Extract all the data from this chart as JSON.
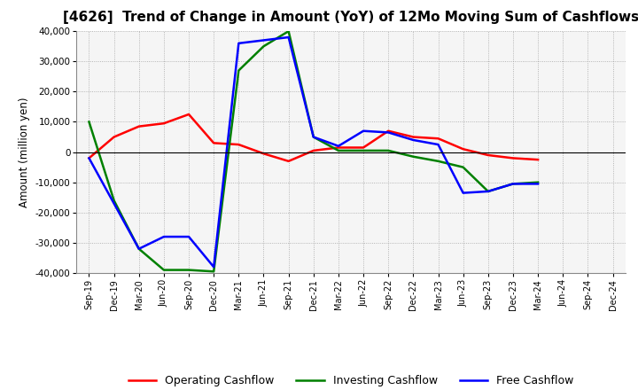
{
  "title": "[4626]  Trend of Change in Amount (YoY) of 12Mo Moving Sum of Cashflows",
  "ylabel": "Amount (million yen)",
  "ylim": [
    -40000,
    40000
  ],
  "yticks": [
    -40000,
    -30000,
    -20000,
    -10000,
    0,
    10000,
    20000,
    30000,
    40000
  ],
  "labels": [
    "Sep-19",
    "Dec-19",
    "Mar-20",
    "Jun-20",
    "Sep-20",
    "Dec-20",
    "Mar-21",
    "Jun-21",
    "Sep-21",
    "Dec-21",
    "Mar-22",
    "Jun-22",
    "Sep-22",
    "Dec-22",
    "Mar-23",
    "Jun-23",
    "Sep-23",
    "Dec-23",
    "Mar-24",
    "Jun-24",
    "Sep-24",
    "Dec-24"
  ],
  "operating": [
    -2000,
    5000,
    8500,
    9500,
    12500,
    3000,
    2500,
    -500,
    -3000,
    500,
    1500,
    1500,
    7000,
    5000,
    4500,
    1000,
    -1000,
    -2000,
    -2500,
    null,
    null,
    null
  ],
  "investing": [
    10000,
    -16000,
    -32000,
    -39000,
    -39000,
    -39500,
    27000,
    35000,
    40000,
    5000,
    500,
    500,
    500,
    -1500,
    -3000,
    -5000,
    -13000,
    -10500,
    -10000,
    null,
    null,
    null
  ],
  "free": [
    -2000,
    -17000,
    -32000,
    -28000,
    -28000,
    -38000,
    36000,
    37000,
    38000,
    5000,
    2000,
    7000,
    6500,
    4000,
    2500,
    -13500,
    -13000,
    -10500,
    -10500,
    null,
    null,
    null
  ],
  "op_color": "#ff0000",
  "inv_color": "#008000",
  "free_color": "#0000ff",
  "bg_color": "#ffffff",
  "plot_bg_color": "#f5f5f5",
  "grid_color": "#999999",
  "title_fontsize": 11,
  "legend_labels": [
    "Operating Cashflow",
    "Investing Cashflow",
    "Free Cashflow"
  ],
  "line_width": 1.8
}
